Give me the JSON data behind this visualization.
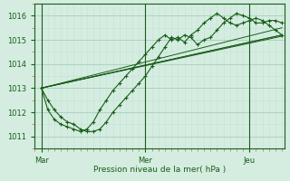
{
  "xlabel": "Pression niveau de la mer( hPa )",
  "bg_color": "#d4ede0",
  "grid_major_color": "#aacfbe",
  "grid_minor_color": "#c4e4d4",
  "line_color": "#1a5c1a",
  "tick_minor_color": "#cc6666",
  "text_color": "#1a5c1a",
  "ylim": [
    1010.5,
    1016.5
  ],
  "xlim": [
    0,
    115
  ],
  "yticks": [
    1011,
    1012,
    1013,
    1014,
    1015,
    1016
  ],
  "day_labels": [
    "Mar",
    "Mer",
    "Jeu"
  ],
  "day_positions": [
    3,
    51,
    99
  ],
  "line1_x": [
    3,
    6,
    9,
    12,
    15,
    18,
    21,
    24,
    27,
    30,
    33,
    36,
    39,
    42,
    45,
    48,
    51,
    54,
    57,
    60,
    63,
    66,
    69,
    72,
    75,
    78,
    81,
    84,
    87,
    90,
    93,
    96,
    99,
    102,
    105,
    108,
    111,
    114
  ],
  "line1_y": [
    1013.0,
    1012.5,
    1012.1,
    1011.8,
    1011.6,
    1011.5,
    1011.3,
    1011.2,
    1011.2,
    1011.3,
    1011.6,
    1012.0,
    1012.3,
    1012.6,
    1012.9,
    1013.2,
    1013.5,
    1013.9,
    1014.3,
    1014.7,
    1015.1,
    1015.0,
    1015.2,
    1015.1,
    1014.8,
    1015.0,
    1015.1,
    1015.4,
    1015.7,
    1015.9,
    1016.1,
    1016.0,
    1015.9,
    1015.7,
    1015.7,
    1015.8,
    1015.8,
    1015.7
  ],
  "line2_x": [
    3,
    6,
    9,
    12,
    15,
    18,
    21,
    24,
    27,
    30,
    33,
    36,
    39,
    42,
    45,
    48,
    51,
    54,
    57,
    60,
    63,
    66,
    69,
    72,
    75,
    78,
    81,
    84,
    87,
    90,
    93,
    96,
    99,
    102,
    105,
    108,
    111,
    114
  ],
  "line2_y": [
    1013.0,
    1012.1,
    1011.7,
    1011.5,
    1011.4,
    1011.3,
    1011.2,
    1011.3,
    1011.6,
    1012.1,
    1012.5,
    1012.9,
    1013.2,
    1013.5,
    1013.8,
    1014.1,
    1014.4,
    1014.7,
    1015.0,
    1015.2,
    1015.0,
    1015.1,
    1014.9,
    1015.2,
    1015.4,
    1015.7,
    1015.9,
    1016.1,
    1015.9,
    1015.7,
    1015.6,
    1015.7,
    1015.8,
    1015.9,
    1015.8,
    1015.6,
    1015.4,
    1015.2
  ],
  "line4_x": [
    3,
    114
  ],
  "line4_y": [
    1013.0,
    1015.2
  ],
  "line5_x": [
    3,
    114
  ],
  "line5_y": [
    1013.0,
    1015.2
  ]
}
